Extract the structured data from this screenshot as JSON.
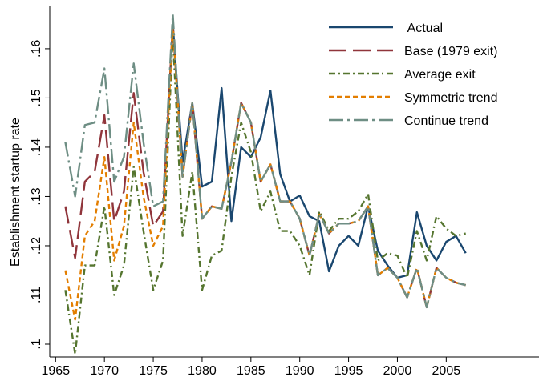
{
  "chart_data": {
    "type": "line",
    "y_label": "Establishment startup rate",
    "x": [
      1966,
      1967,
      1968,
      1969,
      1970,
      1971,
      1972,
      1973,
      1974,
      1975,
      1976,
      1977,
      1978,
      1979,
      1980,
      1981,
      1982,
      1983,
      1984,
      1985,
      1986,
      1987,
      1988,
      1989,
      1990,
      1991,
      1992,
      1993,
      1994,
      1995,
      1996,
      1997,
      1998,
      1999,
      2000,
      2001,
      2002,
      2003,
      2004,
      2005,
      2006,
      2007
    ],
    "series": [
      {
        "name": " Actual",
        "color": "#1a476f",
        "values": [
          null,
          null,
          null,
          null,
          null,
          null,
          null,
          null,
          null,
          null,
          null,
          0.165,
          0.137,
          0.149,
          0.132,
          0.133,
          0.152,
          0.125,
          0.14,
          0.138,
          0.142,
          0.1515,
          0.1345,
          0.129,
          0.1302,
          0.126,
          0.125,
          0.1148,
          0.12,
          0.122,
          0.12,
          0.128,
          0.119,
          0.116,
          0.1135,
          0.114,
          0.1268,
          0.12,
          0.117,
          0.1208,
          0.122,
          0.1185
        ]
      },
      {
        "name": "Base (1979 exit)",
        "color": "#90353b",
        "values": [
          0.128,
          0.1175,
          0.133,
          0.135,
          0.1465,
          0.125,
          0.131,
          0.151,
          0.135,
          0.124,
          0.127,
          0.165,
          0.134,
          0.149,
          0.1255,
          0.128,
          0.1275,
          0.137,
          0.149,
          0.145,
          0.133,
          0.1365,
          0.129,
          0.129,
          0.1255,
          0.118,
          0.1265,
          0.1225,
          0.1245,
          0.1245,
          0.125,
          0.128,
          0.114,
          0.1155,
          0.1135,
          0.1095,
          0.1155,
          0.1075,
          0.1155,
          0.1135,
          0.1125,
          0.112
        ]
      },
      {
        "name": "Average exit",
        "color": "#55752f",
        "values": [
          0.111,
          0.098,
          0.116,
          0.116,
          0.128,
          0.11,
          0.116,
          0.136,
          0.123,
          0.111,
          0.117,
          0.163,
          0.122,
          0.135,
          0.111,
          0.118,
          0.119,
          0.134,
          0.145,
          0.139,
          0.127,
          0.131,
          0.123,
          0.123,
          0.12,
          0.114,
          0.127,
          0.123,
          0.1255,
          0.1255,
          0.127,
          0.1305,
          0.117,
          0.1185,
          0.118,
          0.1135,
          0.123,
          0.117,
          0.126,
          0.1235,
          0.122,
          0.1225
        ]
      },
      {
        "name": "Symmetric trend",
        "color": "#e37e00",
        "values": [
          0.115,
          0.105,
          0.122,
          0.125,
          0.138,
          0.117,
          0.124,
          0.145,
          0.13,
          0.12,
          0.124,
          0.165,
          0.134,
          0.149,
          0.1255,
          0.128,
          0.1275,
          0.137,
          0.149,
          0.145,
          0.133,
          0.1365,
          0.129,
          0.129,
          0.1255,
          0.118,
          0.1265,
          0.1225,
          0.1245,
          0.1245,
          0.125,
          0.128,
          0.114,
          0.1155,
          0.1135,
          0.1095,
          0.1155,
          0.1075,
          0.1155,
          0.1135,
          0.1125,
          0.112
        ]
      },
      {
        "name": "Continue trend",
        "color": "#6e8e84",
        "values": [
          0.141,
          0.13,
          0.1445,
          0.145,
          0.156,
          0.133,
          0.138,
          0.157,
          0.141,
          0.128,
          0.129,
          0.167,
          0.134,
          0.149,
          0.1255,
          0.128,
          0.1275,
          0.137,
          0.149,
          0.145,
          0.133,
          0.1365,
          0.129,
          0.129,
          0.1255,
          0.118,
          0.1265,
          0.1225,
          0.1245,
          0.1245,
          0.125,
          0.128,
          0.114,
          0.1155,
          0.1135,
          0.1095,
          0.1155,
          0.1075,
          0.1155,
          0.1135,
          0.1125,
          0.112
        ]
      }
    ],
    "xlim": [
      1964.4,
      2014.5
    ],
    "xticks": [
      1965,
      1970,
      1975,
      1980,
      1985,
      1990,
      1995,
      2000,
      2005
    ],
    "ylim": [
      0.0974,
      0.1686
    ],
    "yticks": [
      {
        "value": 0.1,
        "label": ".1"
      },
      {
        "value": 0.11,
        "label": ".11"
      },
      {
        "value": 0.12,
        "label": ".12"
      },
      {
        "value": 0.13,
        "label": ".13"
      },
      {
        "value": 0.14,
        "label": ".14"
      },
      {
        "value": 0.15,
        "label": ".15"
      },
      {
        "value": 0.16,
        "label": ".16"
      }
    ],
    "legend": "top-right"
  }
}
